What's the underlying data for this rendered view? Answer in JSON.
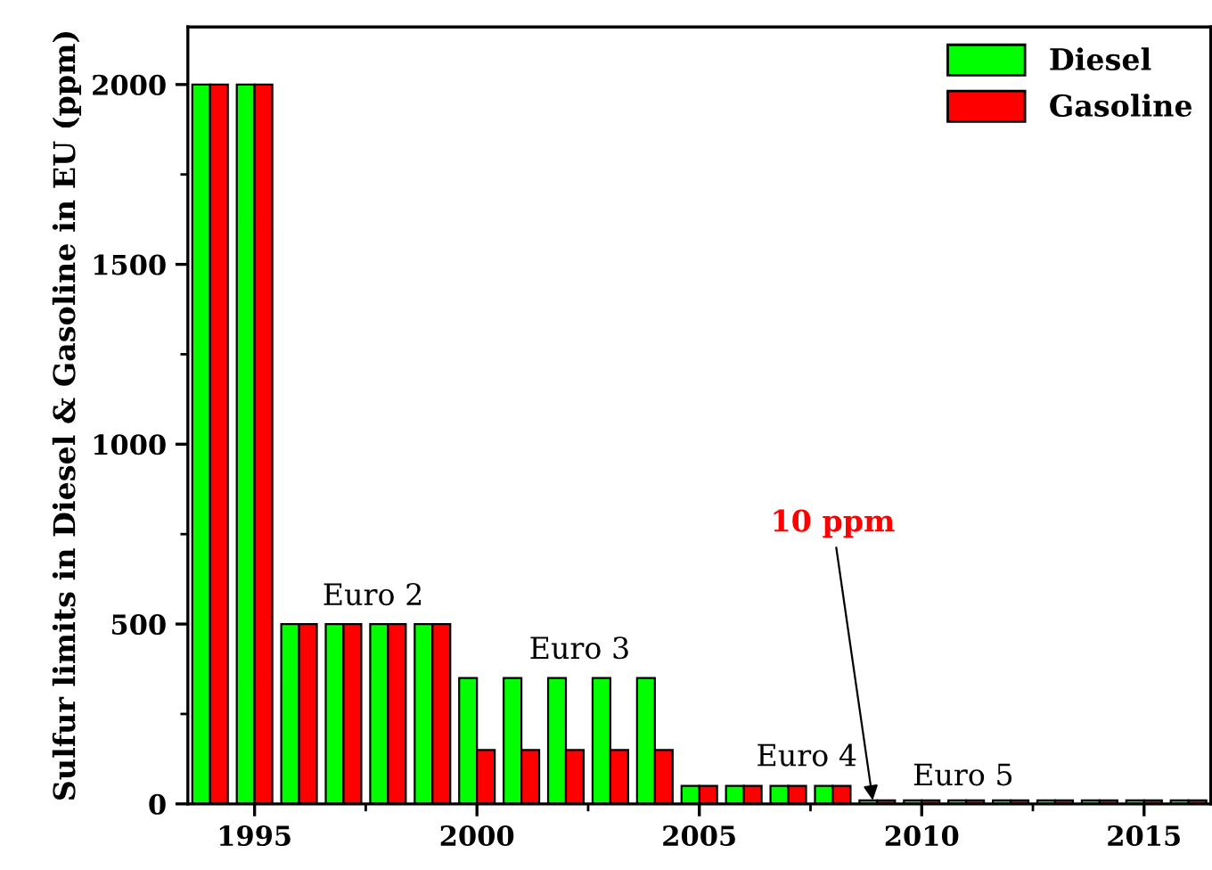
{
  "chart_data": {
    "type": "bar",
    "ylabel": "Sulfur limits in Diesel & Gasoline in EU (ppm)",
    "x": [
      1994,
      1995,
      1996,
      1997,
      1998,
      1999,
      2000,
      2001,
      2002,
      2003,
      2004,
      2005,
      2006,
      2007,
      2008,
      2009,
      2010,
      2011,
      2012,
      2013,
      2014,
      2015,
      2016
    ],
    "series": [
      {
        "name": "Diesel",
        "color": "#00ff00",
        "values": [
          2000,
          2000,
          500,
          500,
          500,
          500,
          350,
          350,
          350,
          350,
          350,
          50,
          50,
          50,
          50,
          10,
          10,
          10,
          10,
          10,
          10,
          10,
          10
        ]
      },
      {
        "name": "Gasoline",
        "color": "#ff0000",
        "values": [
          2000,
          2000,
          500,
          500,
          500,
          500,
          150,
          150,
          150,
          150,
          150,
          50,
          50,
          50,
          50,
          10,
          10,
          10,
          10,
          10,
          10,
          10,
          10
        ]
      }
    ],
    "xlim": [
      1993.5,
      2016.5
    ],
    "ylim": [
      0,
      2160
    ],
    "xticks": [
      1995,
      2000,
      2005,
      2010,
      2015
    ],
    "yticks": [
      0,
      500,
      1000,
      1500,
      2000
    ],
    "annotations": [
      {
        "text": "10 ppm",
        "x": 2008.9,
        "y": 10
      },
      "Euro 2",
      "Euro 3",
      "Euro 4",
      "Euro 5"
    ],
    "legend": "top right",
    "grid": false
  }
}
